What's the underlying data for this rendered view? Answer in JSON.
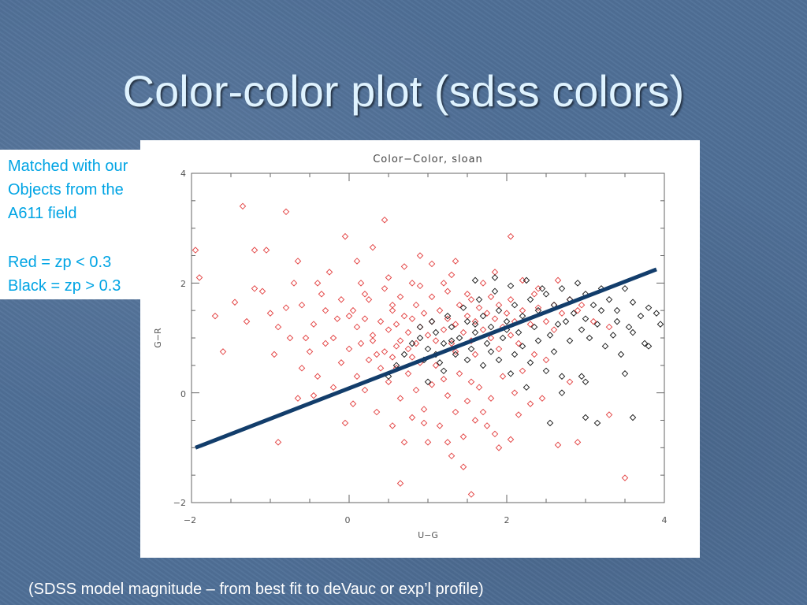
{
  "slide": {
    "title": "Color-color plot (sdss colors)",
    "note_lines": [
      "Matched with our",
      "Objects from the",
      "A611 field",
      "Red = zp < 0.3",
      "Black = zp > 0.3"
    ],
    "caption": "(SDSS model magnitude – from best fit to deVauc or exp’l profile)"
  },
  "chart_data": {
    "type": "scatter",
    "title": "Color−Color, sloan",
    "xlabel": "U−G",
    "ylabel": "G−R",
    "xlim": [
      -2,
      4
    ],
    "ylim": [
      -2,
      4
    ],
    "xticks": [
      "−2",
      "0",
      "2",
      "4"
    ],
    "yticks": [
      "−2",
      "0",
      "2",
      "4"
    ],
    "grid": false,
    "marker": "diamond",
    "series": [
      {
        "color": "#e23b3b",
        "points": [
          [
            -1.95,
            2.6
          ],
          [
            -1.9,
            2.1
          ],
          [
            -1.6,
            0.75
          ],
          [
            -1.45,
            1.65
          ],
          [
            -1.35,
            3.4
          ],
          [
            -1.2,
            2.6
          ],
          [
            -1.05,
            2.6
          ],
          [
            -1.0,
            1.45
          ],
          [
            -0.9,
            1.2
          ],
          [
            -0.8,
            3.3
          ],
          [
            -0.65,
            2.4
          ],
          [
            -0.55,
            1.0
          ],
          [
            -0.4,
            2.0
          ],
          [
            -0.35,
            1.8
          ],
          [
            -0.25,
            2.2
          ],
          [
            -0.15,
            1.35
          ],
          [
            -0.05,
            2.85
          ],
          [
            0.05,
            1.5
          ],
          [
            0.1,
            2.4
          ],
          [
            0.2,
            1.8
          ],
          [
            0.3,
            2.65
          ],
          [
            0.45,
            3.15
          ],
          [
            0.5,
            2.1
          ],
          [
            0.55,
            1.6
          ],
          [
            0.7,
            2.3
          ],
          [
            0.8,
            2.0
          ],
          [
            0.9,
            2.5
          ],
          [
            1.05,
            2.35
          ],
          [
            1.2,
            2.0
          ],
          [
            1.35,
            2.4
          ],
          [
            1.5,
            1.8
          ],
          [
            1.7,
            2.0
          ],
          [
            1.85,
            2.2
          ],
          [
            2.05,
            2.85
          ],
          [
            2.2,
            2.05
          ],
          [
            2.4,
            1.9
          ],
          [
            2.65,
            2.05
          ],
          [
            2.95,
            1.6
          ],
          [
            3.1,
            1.3
          ],
          [
            3.5,
            -1.55
          ],
          [
            -0.95,
            0.7
          ],
          [
            -0.9,
            -0.9
          ],
          [
            -0.75,
            1.0
          ],
          [
            -0.6,
            0.45
          ],
          [
            -0.5,
            0.75
          ],
          [
            -0.4,
            0.3
          ],
          [
            -0.3,
            0.9
          ],
          [
            -0.2,
            0.1
          ],
          [
            -0.1,
            0.55
          ],
          [
            -0.05,
            -0.55
          ],
          [
            0.0,
            0.8
          ],
          [
            0.1,
            0.3
          ],
          [
            0.15,
            0.9
          ],
          [
            0.2,
            0.05
          ],
          [
            0.25,
            0.6
          ],
          [
            0.3,
            0.95
          ],
          [
            0.35,
            -0.35
          ],
          [
            0.4,
            0.45
          ],
          [
            0.45,
            0.75
          ],
          [
            0.5,
            0.2
          ],
          [
            0.55,
            -0.6
          ],
          [
            0.6,
            0.85
          ],
          [
            0.6,
            0.45
          ],
          [
            0.65,
            -0.1
          ],
          [
            0.7,
            -0.9
          ],
          [
            0.75,
            0.35
          ],
          [
            0.8,
            0.65
          ],
          [
            0.8,
            -0.45
          ],
          [
            0.85,
            0.05
          ],
          [
            0.9,
            0.55
          ],
          [
            0.95,
            -0.3
          ],
          [
            1.0,
            -0.9
          ],
          [
            1.05,
            0.15
          ],
          [
            1.1,
            0.5
          ],
          [
            1.15,
            -0.6
          ],
          [
            1.2,
            0.25
          ],
          [
            1.25,
            -0.05
          ],
          [
            1.3,
            -1.15
          ],
          [
            1.35,
            -0.35
          ],
          [
            1.4,
            0.35
          ],
          [
            1.45,
            -0.8
          ],
          [
            1.5,
            -0.15
          ],
          [
            1.55,
            0.2
          ],
          [
            1.6,
            -0.5
          ],
          [
            1.65,
            0.1
          ],
          [
            1.7,
            -0.35
          ],
          [
            1.8,
            -0.1
          ],
          [
            1.85,
            -0.75
          ],
          [
            1.9,
            -1.0
          ],
          [
            1.95,
            0.3
          ],
          [
            2.05,
            -0.85
          ],
          [
            2.1,
            0.0
          ],
          [
            2.2,
            0.4
          ],
          [
            2.3,
            -0.2
          ],
          [
            2.5,
            0.6
          ],
          [
            2.65,
            -0.95
          ],
          [
            2.8,
            0.2
          ],
          [
            0.65,
            -1.65
          ],
          [
            1.45,
            -1.35
          ],
          [
            1.55,
            -1.85
          ],
          [
            0.0,
            1.4
          ],
          [
            0.1,
            1.2
          ],
          [
            0.2,
            1.35
          ],
          [
            0.3,
            1.05
          ],
          [
            0.4,
            1.3
          ],
          [
            0.5,
            1.15
          ],
          [
            0.55,
            1.5
          ],
          [
            0.6,
            1.25
          ],
          [
            0.65,
            0.95
          ],
          [
            0.7,
            1.4
          ],
          [
            0.75,
            1.1
          ],
          [
            0.8,
            1.35
          ],
          [
            0.85,
            0.9
          ],
          [
            0.9,
            1.2
          ],
          [
            0.95,
            1.45
          ],
          [
            1.0,
            1.05
          ],
          [
            1.05,
            1.3
          ],
          [
            1.1,
            0.95
          ],
          [
            1.15,
            1.5
          ],
          [
            1.2,
            1.15
          ],
          [
            1.25,
            1.35
          ],
          [
            1.3,
            0.9
          ],
          [
            1.35,
            1.25
          ],
          [
            1.4,
            1.6
          ],
          [
            1.45,
            1.1
          ],
          [
            1.5,
            1.4
          ],
          [
            1.55,
            0.95
          ],
          [
            1.6,
            1.3
          ],
          [
            1.65,
            1.55
          ],
          [
            1.7,
            1.15
          ],
          [
            1.75,
            1.45
          ],
          [
            1.8,
            1.0
          ],
          [
            1.85,
            1.35
          ],
          [
            1.9,
            1.6
          ],
          [
            1.95,
            1.2
          ],
          [
            2.0,
            1.45
          ],
          [
            2.05,
            1.05
          ],
          [
            2.1,
            1.3
          ],
          [
            2.2,
            1.5
          ],
          [
            2.3,
            1.25
          ],
          [
            2.4,
            1.55
          ],
          [
            2.5,
            1.3
          ],
          [
            2.6,
            1.6
          ],
          [
            2.7,
            1.45
          ],
          [
            2.8,
            1.7
          ],
          [
            2.9,
            1.5
          ],
          [
            -0.2,
            1.0
          ],
          [
            -0.3,
            1.5
          ],
          [
            -0.45,
            1.25
          ],
          [
            -0.6,
            1.6
          ],
          [
            -1.3,
            1.3
          ],
          [
            -1.1,
            1.85
          ],
          [
            -0.8,
            1.55
          ],
          [
            -0.7,
            2.0
          ],
          [
            0.25,
            1.7
          ],
          [
            0.45,
            1.9
          ],
          [
            0.65,
            1.75
          ],
          [
            0.85,
            1.6
          ],
          [
            1.05,
            1.75
          ],
          [
            1.25,
            1.85
          ],
          [
            1.55,
            1.7
          ],
          [
            1.8,
            1.75
          ],
          [
            2.05,
            1.7
          ],
          [
            2.35,
            1.8
          ],
          [
            0.35,
            0.7
          ],
          [
            0.55,
            0.65
          ],
          [
            0.75,
            0.8
          ],
          [
            1.35,
            0.75
          ],
          [
            1.6,
            0.7
          ],
          [
            1.9,
            0.8
          ],
          [
            2.15,
            0.9
          ],
          [
            2.35,
            0.7
          ],
          [
            -1.2,
            1.9
          ],
          [
            -1.7,
            1.4
          ],
          [
            -0.1,
            1.7
          ],
          [
            0.15,
            2.0
          ],
          [
            0.9,
            1.95
          ],
          [
            1.3,
            2.15
          ],
          [
            2.6,
            1.15
          ],
          [
            3.3,
            1.2
          ],
          [
            -0.45,
            -0.05
          ],
          [
            0.05,
            -0.2
          ],
          [
            0.95,
            -0.55
          ],
          [
            1.75,
            -0.6
          ],
          [
            2.15,
            -0.4
          ],
          [
            2.45,
            -0.1
          ],
          [
            2.9,
            -0.9
          ],
          [
            3.3,
            -0.4
          ],
          [
            -0.65,
            -0.1
          ],
          [
            1.25,
            -0.9
          ]
        ]
      },
      {
        "color": "#111111",
        "points": [
          [
            0.8,
            0.9
          ],
          [
            0.9,
            1.0
          ],
          [
            1.0,
            0.8
          ],
          [
            1.1,
            1.1
          ],
          [
            1.2,
            0.9
          ],
          [
            1.3,
            1.2
          ],
          [
            1.4,
            1.0
          ],
          [
            1.5,
            1.3
          ],
          [
            1.6,
            1.1
          ],
          [
            1.7,
            1.4
          ],
          [
            1.8,
            1.2
          ],
          [
            1.9,
            1.5
          ],
          [
            2.0,
            1.3
          ],
          [
            2.1,
            1.6
          ],
          [
            2.2,
            1.4
          ],
          [
            2.3,
            1.7
          ],
          [
            2.4,
            1.5
          ],
          [
            2.5,
            1.8
          ],
          [
            2.6,
            1.6
          ],
          [
            2.7,
            1.9
          ],
          [
            2.8,
            1.7
          ],
          [
            2.9,
            2.0
          ],
          [
            3.0,
            1.8
          ],
          [
            3.1,
            1.6
          ],
          [
            3.2,
            1.9
          ],
          [
            3.3,
            1.7
          ],
          [
            3.4,
            1.5
          ],
          [
            3.5,
            1.9
          ],
          [
            3.6,
            1.65
          ],
          [
            3.7,
            1.4
          ],
          [
            3.8,
            1.55
          ],
          [
            3.9,
            1.45
          ],
          [
            0.95,
            0.6
          ],
          [
            1.15,
            0.55
          ],
          [
            1.35,
            0.7
          ],
          [
            1.55,
            0.8
          ],
          [
            1.75,
            0.9
          ],
          [
            1.95,
            1.0
          ],
          [
            2.15,
            1.1
          ],
          [
            2.35,
            1.2
          ],
          [
            2.55,
            1.05
          ],
          [
            2.75,
            1.3
          ],
          [
            2.95,
            1.15
          ],
          [
            3.15,
            1.25
          ],
          [
            3.35,
            1.05
          ],
          [
            3.55,
            1.2
          ],
          [
            3.75,
            0.9
          ],
          [
            1.05,
            1.3
          ],
          [
            1.25,
            1.4
          ],
          [
            1.45,
            1.55
          ],
          [
            1.65,
            1.7
          ],
          [
            1.85,
            1.85
          ],
          [
            2.05,
            1.95
          ],
          [
            2.25,
            2.05
          ],
          [
            2.45,
            1.9
          ],
          [
            2.65,
            1.25
          ],
          [
            2.85,
            1.45
          ],
          [
            3.05,
            1.0
          ],
          [
            3.25,
            0.85
          ],
          [
            3.45,
            0.7
          ],
          [
            1.5,
            0.6
          ],
          [
            1.7,
            0.5
          ],
          [
            1.9,
            0.6
          ],
          [
            2.1,
            0.7
          ],
          [
            2.3,
            0.55
          ],
          [
            2.5,
            0.4
          ],
          [
            2.7,
            0.3
          ],
          [
            3.0,
            0.2
          ],
          [
            0.6,
            0.5
          ],
          [
            0.7,
            0.7
          ],
          [
            0.9,
            1.2
          ],
          [
            1.1,
            0.7
          ],
          [
            1.3,
            0.95
          ],
          [
            1.6,
            1.25
          ],
          [
            1.8,
            0.75
          ],
          [
            2.0,
            1.15
          ],
          [
            2.2,
            0.85
          ],
          [
            2.4,
            0.95
          ],
          [
            2.6,
            0.75
          ],
          [
            2.8,
            0.95
          ],
          [
            3.0,
            1.35
          ],
          [
            3.2,
            1.5
          ],
          [
            3.4,
            1.3
          ],
          [
            3.6,
            1.1
          ],
          [
            3.8,
            0.85
          ],
          [
            3.95,
            1.25
          ],
          [
            2.55,
            -0.55
          ],
          [
            3.0,
            -0.45
          ],
          [
            3.15,
            -0.55
          ],
          [
            3.6,
            -0.45
          ],
          [
            2.7,
            0.0
          ],
          [
            2.95,
            0.3
          ],
          [
            3.5,
            0.35
          ],
          [
            1.6,
            2.05
          ],
          [
            1.85,
            2.1
          ],
          [
            0.5,
            0.3
          ],
          [
            1.0,
            0.2
          ],
          [
            1.2,
            0.4
          ],
          [
            2.05,
            0.35
          ],
          [
            2.25,
            0.1
          ]
        ]
      }
    ],
    "fit_line": {
      "color": "#123d6b",
      "from": [
        -1.95,
        -1.0
      ],
      "to": [
        3.9,
        2.25
      ]
    }
  }
}
